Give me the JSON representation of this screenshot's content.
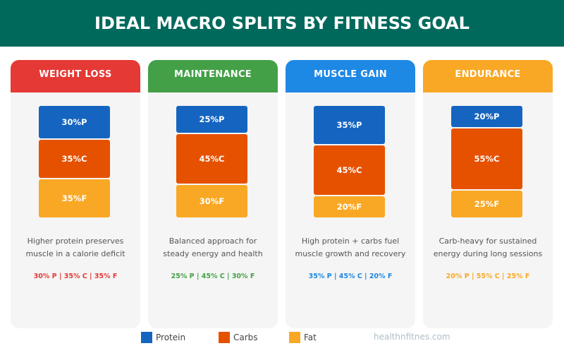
{
  "title": "IDEAL MACRO SPLITS BY FITNESS GOAL",
  "colors": {
    "protein": "#1565c0",
    "carbs": "#e65100",
    "fat": "#f9a825",
    "banner": "#00695c"
  },
  "chart_data": {
    "type": "bar",
    "stacked": true,
    "unit": "%",
    "categories": [
      "WEIGHT LOSS",
      "MAINTENANCE",
      "MUSCLE GAIN",
      "ENDURANCE"
    ],
    "series": [
      {
        "name": "Protein",
        "values": [
          30,
          25,
          35,
          20
        ]
      },
      {
        "name": "Carbs",
        "values": [
          35,
          45,
          45,
          55
        ]
      },
      {
        "name": "Fat",
        "values": [
          35,
          30,
          20,
          25
        ]
      }
    ],
    "ylim": [
      0,
      100
    ]
  },
  "cards": [
    {
      "title": "WEIGHT LOSS",
      "color": "#e53935",
      "labels": [
        "30%P",
        "35%C",
        "35%F"
      ],
      "desc1": "Higher protein preserves",
      "desc2": "muscle in a calorie deficit",
      "split": "30% P | 35% C | 35% F"
    },
    {
      "title": "MAINTENANCE",
      "color": "#43a047",
      "labels": [
        "25%P",
        "45%C",
        "30%F"
      ],
      "desc1": "Balanced approach for",
      "desc2": "steady energy and health",
      "split": "25% P | 45% C | 30% F"
    },
    {
      "title": "MUSCLE GAIN",
      "color": "#1e88e5",
      "labels": [
        "35%P",
        "45%C",
        "20%F"
      ],
      "desc1": "High protein + carbs fuel",
      "desc2": "muscle growth and recovery",
      "split": "35% P | 45% C | 20% F"
    },
    {
      "title": "ENDURANCE",
      "color": "#f9a825",
      "labels": [
        "20%P",
        "55%C",
        "25%F"
      ],
      "desc1": "Carb-heavy for sustained",
      "desc2": "energy during long sessions",
      "split": "20% P | 55% C | 25% F"
    }
  ],
  "legend": [
    "Protein",
    "Carbs",
    "Fat"
  ],
  "footer": "healthnfitnes.com"
}
